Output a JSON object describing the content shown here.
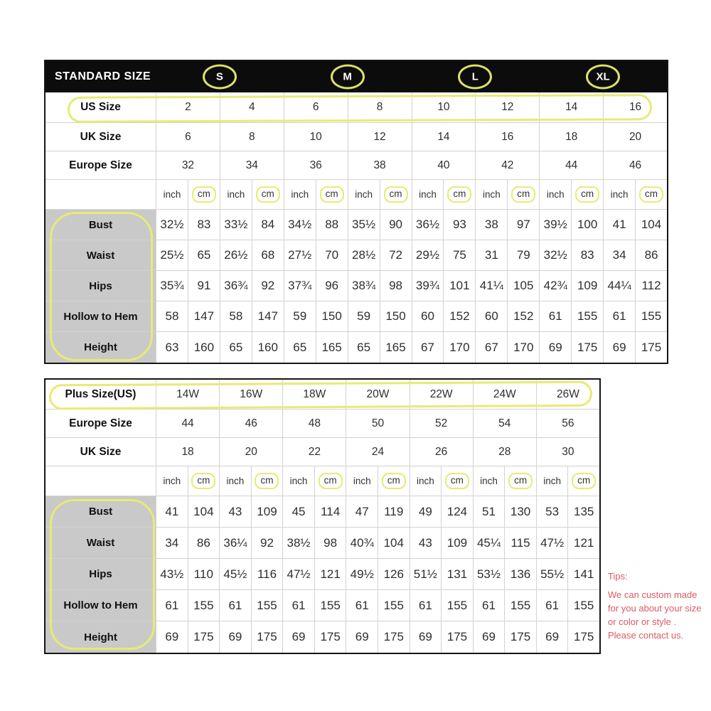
{
  "colors": {
    "annotation_yellow": "#e7eb72",
    "header_black": "#0c0c0c",
    "label_gray": "#c9c9c9",
    "tips_red": "#db5a63"
  },
  "chart_data": [
    {
      "type": "table",
      "title": "STANDARD SIZE",
      "size_groups": [
        "S",
        "M",
        "L",
        "XL"
      ],
      "columns": 8,
      "units": [
        "inch",
        "cm"
      ],
      "size_rows": [
        {
          "label": "US Size",
          "annotated": true,
          "values": [
            "2",
            "4",
            "6",
            "8",
            "10",
            "12",
            "14",
            "16"
          ]
        },
        {
          "label": "UK Size",
          "annotated": false,
          "values": [
            "6",
            "8",
            "10",
            "12",
            "14",
            "16",
            "18",
            "20"
          ]
        },
        {
          "label": "Europe Size",
          "annotated": false,
          "values": [
            "32",
            "34",
            "36",
            "38",
            "40",
            "42",
            "44",
            "46"
          ]
        }
      ],
      "measurement_rows": [
        {
          "label": "Bust",
          "values": [
            [
              "32½",
              "83"
            ],
            [
              "33½",
              "84"
            ],
            [
              "34½",
              "88"
            ],
            [
              "35½",
              "90"
            ],
            [
              "36½",
              "93"
            ],
            [
              "38",
              "97"
            ],
            [
              "39½",
              "100"
            ],
            [
              "41",
              "104"
            ]
          ]
        },
        {
          "label": "Waist",
          "values": [
            [
              "25½",
              "65"
            ],
            [
              "26½",
              "68"
            ],
            [
              "27½",
              "70"
            ],
            [
              "28½",
              "72"
            ],
            [
              "29½",
              "75"
            ],
            [
              "31",
              "79"
            ],
            [
              "32½",
              "83"
            ],
            [
              "34",
              "86"
            ]
          ]
        },
        {
          "label": "Hips",
          "values": [
            [
              "35¾",
              "91"
            ],
            [
              "36¾",
              "92"
            ],
            [
              "37¾",
              "96"
            ],
            [
              "38¾",
              "98"
            ],
            [
              "39¾",
              "101"
            ],
            [
              "41¼",
              "105"
            ],
            [
              "42¾",
              "109"
            ],
            [
              "44¼",
              "112"
            ]
          ]
        },
        {
          "label": "Hollow to Hem",
          "values": [
            [
              "58",
              "147"
            ],
            [
              "58",
              "147"
            ],
            [
              "59",
              "150"
            ],
            [
              "59",
              "150"
            ],
            [
              "60",
              "152"
            ],
            [
              "60",
              "152"
            ],
            [
              "61",
              "155"
            ],
            [
              "61",
              "155"
            ]
          ]
        },
        {
          "label": "Height",
          "values": [
            [
              "63",
              "160"
            ],
            [
              "65",
              "160"
            ],
            [
              "65",
              "165"
            ],
            [
              "65",
              "165"
            ],
            [
              "67",
              "170"
            ],
            [
              "67",
              "170"
            ],
            [
              "69",
              "175"
            ],
            [
              "69",
              "175"
            ]
          ]
        }
      ],
      "highlights": [
        "S/M/L/XL circled",
        "US Size row circled",
        "cm unit cells boxed",
        "measurement labels column circled"
      ]
    },
    {
      "type": "table",
      "title": "Plus Size(US)",
      "columns": 7,
      "units": [
        "inch",
        "cm"
      ],
      "size_rows": [
        {
          "label": "Plus Size(US)",
          "annotated": true,
          "values": [
            "14W",
            "16W",
            "18W",
            "20W",
            "22W",
            "24W",
            "26W"
          ]
        },
        {
          "label": "Europe Size",
          "annotated": false,
          "values": [
            "44",
            "46",
            "48",
            "50",
            "52",
            "54",
            "56"
          ]
        },
        {
          "label": "UK Size",
          "annotated": false,
          "values": [
            "18",
            "20",
            "22",
            "24",
            "26",
            "28",
            "30"
          ]
        }
      ],
      "measurement_rows": [
        {
          "label": "Bust",
          "values": [
            [
              "41",
              "104"
            ],
            [
              "43",
              "109"
            ],
            [
              "45",
              "114"
            ],
            [
              "47",
              "119"
            ],
            [
              "49",
              "124"
            ],
            [
              "51",
              "130"
            ],
            [
              "53",
              "135"
            ]
          ]
        },
        {
          "label": "Waist",
          "values": [
            [
              "34",
              "86"
            ],
            [
              "36¼",
              "92"
            ],
            [
              "38½",
              "98"
            ],
            [
              "40¾",
              "104"
            ],
            [
              "43",
              "109"
            ],
            [
              "45¼",
              "115"
            ],
            [
              "47½",
              "121"
            ]
          ]
        },
        {
          "label": "Hips",
          "values": [
            [
              "43½",
              "110"
            ],
            [
              "45½",
              "116"
            ],
            [
              "47½",
              "121"
            ],
            [
              "49½",
              "126"
            ],
            [
              "51½",
              "131"
            ],
            [
              "53½",
              "136"
            ],
            [
              "55½",
              "141"
            ]
          ]
        },
        {
          "label": "Hollow to Hem",
          "values": [
            [
              "61",
              "155"
            ],
            [
              "61",
              "155"
            ],
            [
              "61",
              "155"
            ],
            [
              "61",
              "155"
            ],
            [
              "61",
              "155"
            ],
            [
              "61",
              "155"
            ],
            [
              "61",
              "155"
            ]
          ]
        },
        {
          "label": "Height",
          "values": [
            [
              "69",
              "175"
            ],
            [
              "69",
              "175"
            ],
            [
              "69",
              "175"
            ],
            [
              "69",
              "175"
            ],
            [
              "69",
              "175"
            ],
            [
              "69",
              "175"
            ],
            [
              "69",
              "175"
            ]
          ]
        }
      ],
      "highlights": [
        "Plus Size(US) row circled",
        "cm unit cells boxed",
        "measurement labels column circled"
      ]
    }
  ],
  "tips": {
    "title": "Tips:",
    "lines": [
      "We can custom made",
      "for you about your size",
      "or color or style .",
      "Please contact us."
    ]
  }
}
